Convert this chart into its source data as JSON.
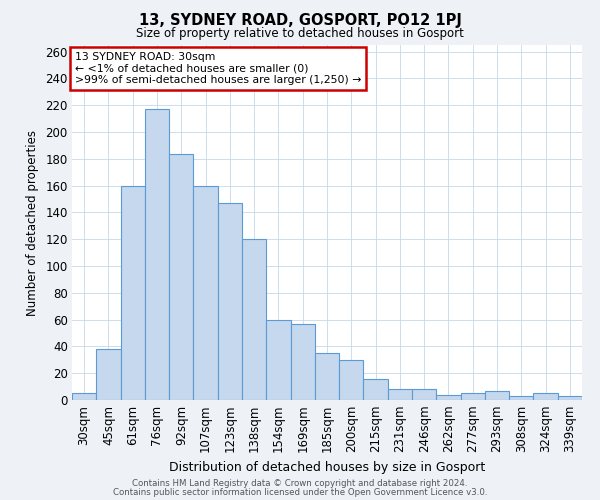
{
  "title": "13, SYDNEY ROAD, GOSPORT, PO12 1PJ",
  "subtitle": "Size of property relative to detached houses in Gosport",
  "xlabel": "Distribution of detached houses by size in Gosport",
  "ylabel": "Number of detached properties",
  "bar_labels": [
    "30sqm",
    "45sqm",
    "61sqm",
    "76sqm",
    "92sqm",
    "107sqm",
    "123sqm",
    "138sqm",
    "154sqm",
    "169sqm",
    "185sqm",
    "200sqm",
    "215sqm",
    "231sqm",
    "246sqm",
    "262sqm",
    "277sqm",
    "293sqm",
    "308sqm",
    "324sqm",
    "339sqm"
  ],
  "bar_values": [
    5,
    38,
    160,
    217,
    184,
    160,
    147,
    120,
    60,
    57,
    35,
    30,
    16,
    8,
    8,
    4,
    5,
    7,
    3,
    5,
    3
  ],
  "bar_color": "#c5d8ed",
  "bar_edge_color": "#5b9bd5",
  "annotation_text": "13 SYDNEY ROAD: 30sqm\n← <1% of detached houses are smaller (0)\n>99% of semi-detached houses are larger (1,250) →",
  "annotation_box_edge_color": "#cc0000",
  "ylim": [
    0,
    265
  ],
  "yticks": [
    0,
    20,
    40,
    60,
    80,
    100,
    120,
    140,
    160,
    180,
    200,
    220,
    240,
    260
  ],
  "footer_line1": "Contains HM Land Registry data © Crown copyright and database right 2024.",
  "footer_line2": "Contains public sector information licensed under the Open Government Licence v3.0.",
  "bg_color": "#eef2f7",
  "plot_bg_color": "#ffffff",
  "grid_color": "#c8d8e8"
}
